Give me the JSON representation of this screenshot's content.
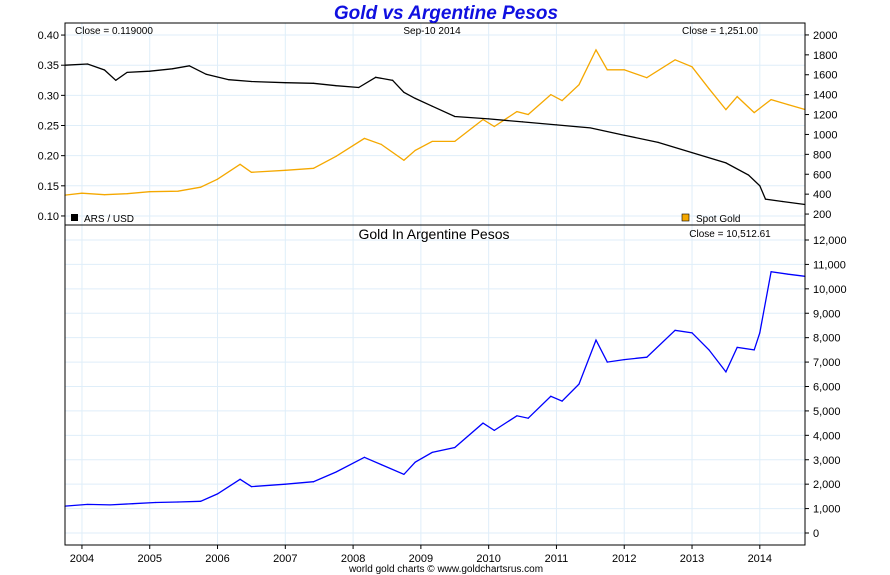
{
  "chart_data": [
    {
      "type": "line",
      "title": "Gold vs Argentine Pesos",
      "date_label": "Sep-10  2014",
      "grid": true,
      "x_tick_labels": [
        "2004",
        "2005",
        "2006",
        "2007",
        "2008",
        "2009",
        "2010",
        "2011",
        "2012",
        "2013",
        "2014"
      ],
      "left_axis": {
        "ylim": [
          0.085,
          0.42
        ],
        "ticks": [
          "0.10",
          "0.15",
          "0.20",
          "0.25",
          "0.30",
          "0.35",
          "0.40"
        ]
      },
      "right_axis": {
        "ylim": [
          90,
          2120
        ],
        "ticks": [
          "200",
          "400",
          "600",
          "800",
          "1000",
          "1200",
          "1400",
          "1600",
          "1800",
          "2000"
        ]
      },
      "series": [
        {
          "name": "ARS / USD",
          "axis": "left",
          "color": "#000000",
          "close_label": "Close = 0.119000",
          "x": [
            "2003-10",
            "2004-02",
            "2004-05",
            "2004-07",
            "2004-09",
            "2005-01",
            "2005-05",
            "2005-08",
            "2005-11",
            "2006-03",
            "2006-07",
            "2007-01",
            "2007-06",
            "2007-10",
            "2008-02",
            "2008-05",
            "2008-08",
            "2008-10",
            "2008-12",
            "2009-03",
            "2009-07",
            "2010-01",
            "2010-07",
            "2011-01",
            "2011-07",
            "2012-01",
            "2012-07",
            "2013-01",
            "2013-07",
            "2013-11",
            "2014-01",
            "2014-02",
            "2014-05",
            "2014-09"
          ],
          "y": [
            0.35,
            0.352,
            0.342,
            0.325,
            0.338,
            0.34,
            0.344,
            0.349,
            0.335,
            0.326,
            0.323,
            0.321,
            0.32,
            0.316,
            0.313,
            0.33,
            0.325,
            0.305,
            0.295,
            0.282,
            0.265,
            0.261,
            0.256,
            0.251,
            0.246,
            0.234,
            0.222,
            0.205,
            0.188,
            0.168,
            0.15,
            0.128,
            0.124,
            0.119
          ]
        },
        {
          "name": "Spot Gold",
          "axis": "right",
          "color": "#f5a800",
          "close_label": "Close = 1,251.00",
          "x": [
            "2003-10",
            "2004-01",
            "2004-05",
            "2004-09",
            "2005-01",
            "2005-06",
            "2005-10",
            "2006-01",
            "2006-05",
            "2006-07",
            "2007-01",
            "2007-06",
            "2007-10",
            "2008-03",
            "2008-06",
            "2008-10",
            "2008-12",
            "2009-03",
            "2009-07",
            "2009-12",
            "2010-02",
            "2010-06",
            "2010-08",
            "2010-12",
            "2011-02",
            "2011-05",
            "2011-08",
            "2011-10",
            "2012-01",
            "2012-05",
            "2012-10",
            "2013-01",
            "2013-04",
            "2013-07",
            "2013-09",
            "2013-12",
            "2014-03",
            "2014-06",
            "2014-09"
          ],
          "y": [
            390,
            410,
            395,
            405,
            425,
            430,
            470,
            550,
            700,
            620,
            640,
            660,
            780,
            960,
            900,
            740,
            840,
            930,
            930,
            1150,
            1080,
            1230,
            1200,
            1400,
            1340,
            1500,
            1850,
            1650,
            1650,
            1570,
            1750,
            1680,
            1460,
            1250,
            1380,
            1220,
            1350,
            1300,
            1251
          ]
        }
      ]
    },
    {
      "type": "line",
      "title": "Gold In Argentine Pesos",
      "grid": true,
      "ylim": [
        0,
        12000
      ],
      "y_ticks": [
        "0",
        "1,000",
        "2,000",
        "3,000",
        "4,000",
        "5,000",
        "6,000",
        "7,000",
        "8,000",
        "9,000",
        "10,000",
        "11,000",
        "12,000"
      ],
      "series": [
        {
          "color": "#0000ff",
          "close_label": "Close = 10,512.61",
          "x": [
            "2003-10",
            "2004-02",
            "2004-06",
            "2004-10",
            "2005-02",
            "2005-06",
            "2005-10",
            "2006-01",
            "2006-05",
            "2006-07",
            "2007-01",
            "2007-06",
            "2007-10",
            "2008-03",
            "2008-06",
            "2008-10",
            "2008-12",
            "2009-03",
            "2009-07",
            "2009-12",
            "2010-02",
            "2010-06",
            "2010-08",
            "2010-12",
            "2011-02",
            "2011-05",
            "2011-08",
            "2011-10",
            "2012-01",
            "2012-05",
            "2012-10",
            "2013-01",
            "2013-04",
            "2013-07",
            "2013-09",
            "2013-12",
            "2014-01",
            "2014-03",
            "2014-06",
            "2014-09"
          ],
          "y": [
            1100,
            1170,
            1150,
            1200,
            1250,
            1270,
            1300,
            1600,
            2200,
            1900,
            2000,
            2100,
            2500,
            3100,
            2800,
            2400,
            2900,
            3300,
            3500,
            4500,
            4200,
            4800,
            4700,
            5600,
            5400,
            6100,
            7900,
            7000,
            7100,
            7200,
            8300,
            8200,
            7500,
            6600,
            7600,
            7500,
            8200,
            10700,
            10600,
            10513
          ]
        }
      ]
    }
  ],
  "footer": "world gold charts © www.goldchartsrus.com"
}
